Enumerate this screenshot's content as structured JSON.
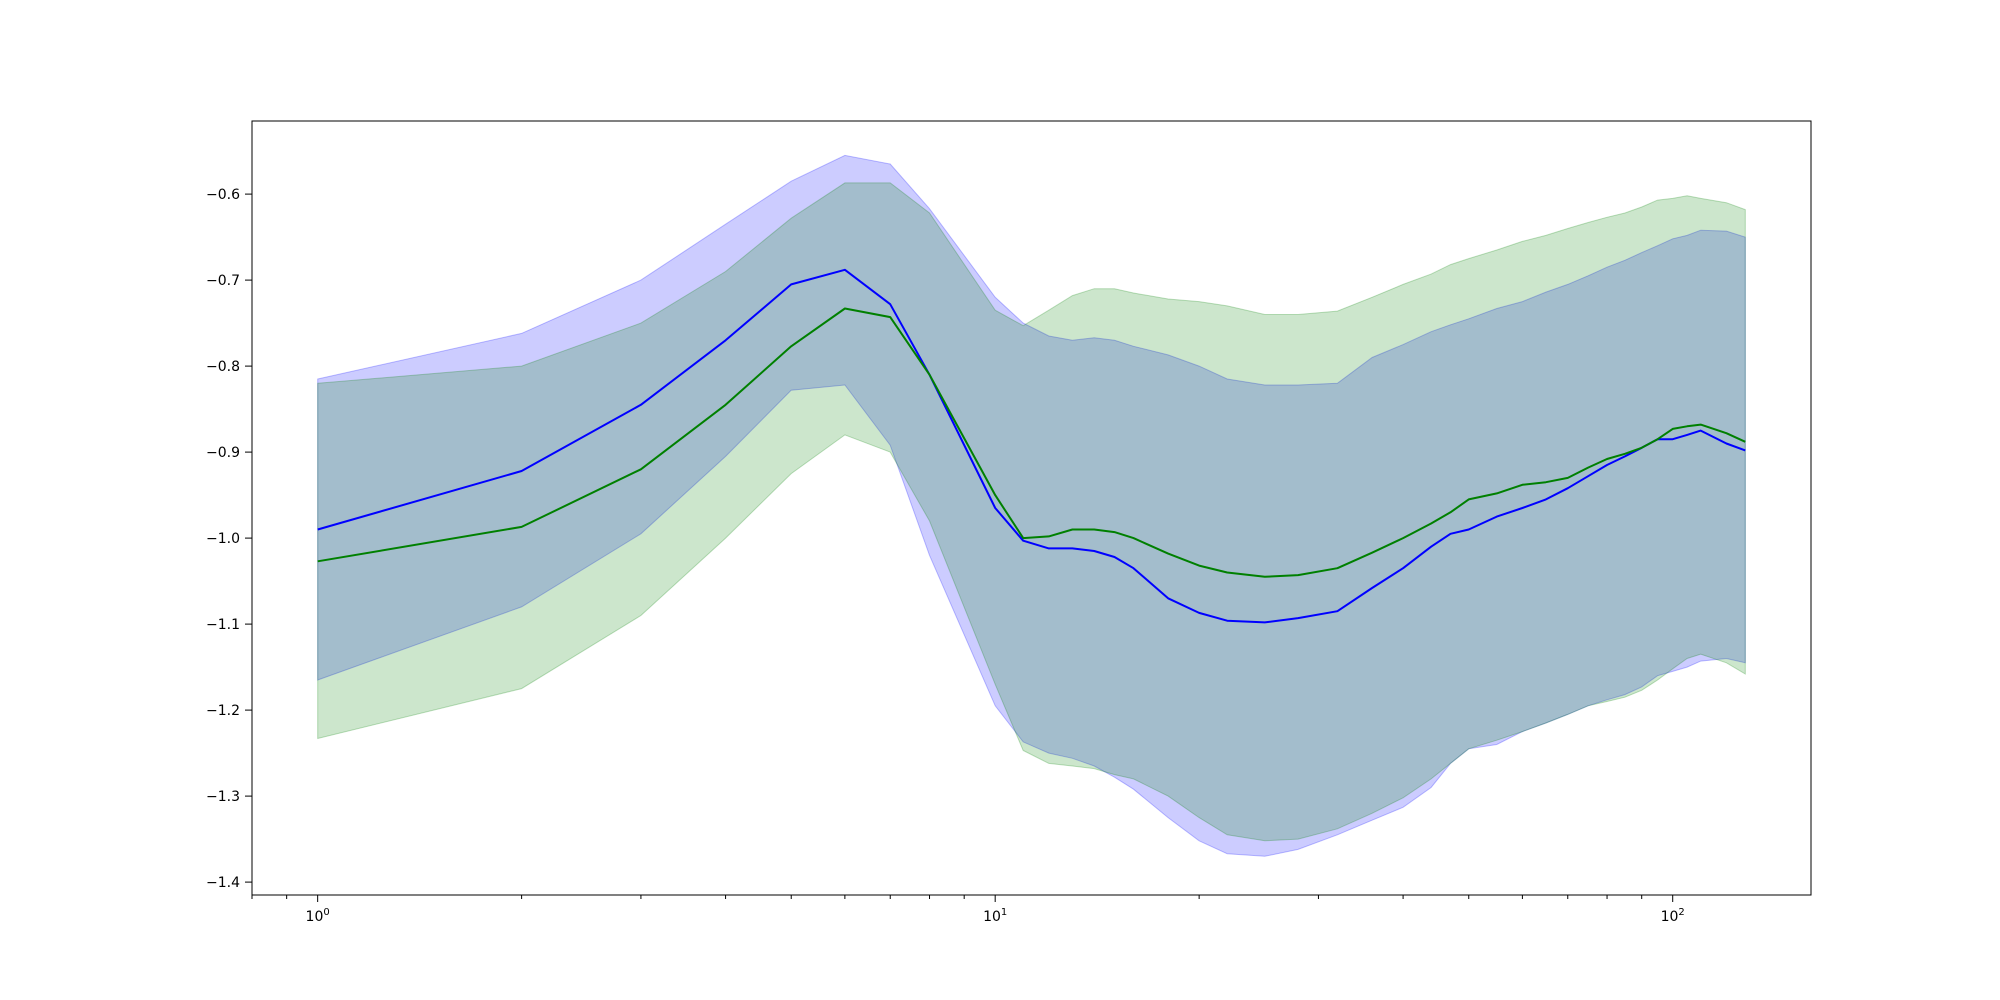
{
  "chart_data": {
    "type": "line",
    "title": "",
    "xlabel": "",
    "ylabel": "",
    "x_scale": "log",
    "xlim": [
      0.8,
      160
    ],
    "ylim": [
      -1.415,
      -0.515
    ],
    "grid": false,
    "legend": "none",
    "x_ticks": [
      {
        "value": 1,
        "base": "10",
        "exp": "0"
      },
      {
        "value": 10,
        "base": "10",
        "exp": "1"
      },
      {
        "value": 100,
        "base": "10",
        "exp": "2"
      }
    ],
    "x_minor_ticks": [
      0.8,
      0.9,
      2,
      3,
      4,
      5,
      6,
      7,
      8,
      9,
      20,
      30,
      40,
      50,
      60,
      70,
      80,
      90
    ],
    "y_ticks": [
      {
        "value": -0.6,
        "label": "−0.6"
      },
      {
        "value": -0.7,
        "label": "−0.7"
      },
      {
        "value": -0.8,
        "label": "−0.8"
      },
      {
        "value": -0.9,
        "label": "−0.9"
      },
      {
        "value": -1.0,
        "label": "−1.0"
      },
      {
        "value": -1.1,
        "label": "−1.1"
      },
      {
        "value": -1.2,
        "label": "−1.2"
      },
      {
        "value": -1.3,
        "label": "−1.3"
      },
      {
        "value": -1.4,
        "label": "−1.4"
      }
    ],
    "x": [
      1,
      2,
      3,
      4,
      5,
      6,
      7,
      8,
      10,
      11,
      12,
      13,
      14,
      15,
      16,
      18,
      20,
      22,
      25,
      28,
      32,
      36,
      40,
      44,
      47,
      50,
      55,
      60,
      65,
      70,
      75,
      80,
      85,
      90,
      95,
      100,
      105,
      110,
      120,
      128
    ],
    "series": [
      {
        "color": "#0000ff",
        "band_color": "#0000ff",
        "values": [
          -0.99,
          -0.922,
          -0.845,
          -0.77,
          -0.705,
          -0.688,
          -0.728,
          -0.81,
          -0.965,
          -1.003,
          -1.012,
          -1.012,
          -1.015,
          -1.022,
          -1.035,
          -1.07,
          -1.087,
          -1.096,
          -1.098,
          -1.093,
          -1.085,
          -1.058,
          -1.035,
          -1.01,
          -0.995,
          -0.99,
          -0.975,
          -0.965,
          -0.955,
          -0.942,
          -0.928,
          -0.915,
          -0.905,
          -0.895,
          -0.885,
          -0.885,
          -0.88,
          -0.875,
          -0.89,
          -0.898
        ],
        "upper": [
          -0.815,
          -0.762,
          -0.7,
          -0.635,
          -0.585,
          -0.555,
          -0.565,
          -0.617,
          -0.72,
          -0.75,
          -0.765,
          -0.77,
          -0.767,
          -0.77,
          -0.777,
          -0.787,
          -0.8,
          -0.815,
          -0.822,
          -0.822,
          -0.82,
          -0.79,
          -0.775,
          -0.76,
          -0.752,
          -0.745,
          -0.733,
          -0.725,
          -0.714,
          -0.705,
          -0.695,
          -0.685,
          -0.677,
          -0.668,
          -0.66,
          -0.652,
          -0.648,
          -0.642,
          -0.643,
          -0.65
        ],
        "lower": [
          -1.165,
          -1.08,
          -0.995,
          -0.905,
          -0.828,
          -0.822,
          -0.892,
          -1.02,
          -1.195,
          -1.237,
          -1.25,
          -1.256,
          -1.265,
          -1.278,
          -1.292,
          -1.325,
          -1.352,
          -1.367,
          -1.37,
          -1.362,
          -1.345,
          -1.328,
          -1.313,
          -1.29,
          -1.262,
          -1.245,
          -1.24,
          -1.225,
          -1.215,
          -1.205,
          -1.195,
          -1.188,
          -1.182,
          -1.173,
          -1.16,
          -1.155,
          -1.15,
          -1.143,
          -1.14,
          -1.145
        ]
      },
      {
        "color": "#008000",
        "band_color": "#008000",
        "values": [
          -1.027,
          -0.987,
          -0.92,
          -0.845,
          -0.777,
          -0.733,
          -0.743,
          -0.81,
          -0.95,
          -1.0,
          -0.998,
          -0.99,
          -0.99,
          -0.993,
          -1.0,
          -1.018,
          -1.032,
          -1.04,
          -1.045,
          -1.043,
          -1.035,
          -1.017,
          -1.0,
          -0.983,
          -0.97,
          -0.955,
          -0.948,
          -0.938,
          -0.935,
          -0.93,
          -0.918,
          -0.908,
          -0.902,
          -0.895,
          -0.885,
          -0.873,
          -0.87,
          -0.868,
          -0.878,
          -0.888
        ],
        "upper": [
          -0.82,
          -0.8,
          -0.75,
          -0.69,
          -0.628,
          -0.587,
          -0.587,
          -0.622,
          -0.735,
          -0.753,
          -0.735,
          -0.718,
          -0.71,
          -0.71,
          -0.715,
          -0.722,
          -0.725,
          -0.73,
          -0.74,
          -0.74,
          -0.736,
          -0.72,
          -0.705,
          -0.693,
          -0.682,
          -0.675,
          -0.665,
          -0.655,
          -0.648,
          -0.64,
          -0.633,
          -0.627,
          -0.622,
          -0.615,
          -0.607,
          -0.605,
          -0.602,
          -0.605,
          -0.61,
          -0.618
        ],
        "lower": [
          -1.233,
          -1.175,
          -1.09,
          -1.0,
          -0.925,
          -0.88,
          -0.9,
          -0.98,
          -1.17,
          -1.247,
          -1.262,
          -1.265,
          -1.268,
          -1.275,
          -1.28,
          -1.3,
          -1.325,
          -1.345,
          -1.352,
          -1.35,
          -1.338,
          -1.32,
          -1.302,
          -1.28,
          -1.262,
          -1.245,
          -1.235,
          -1.225,
          -1.215,
          -1.205,
          -1.195,
          -1.19,
          -1.185,
          -1.177,
          -1.165,
          -1.152,
          -1.14,
          -1.135,
          -1.145,
          -1.158
        ]
      }
    ]
  }
}
